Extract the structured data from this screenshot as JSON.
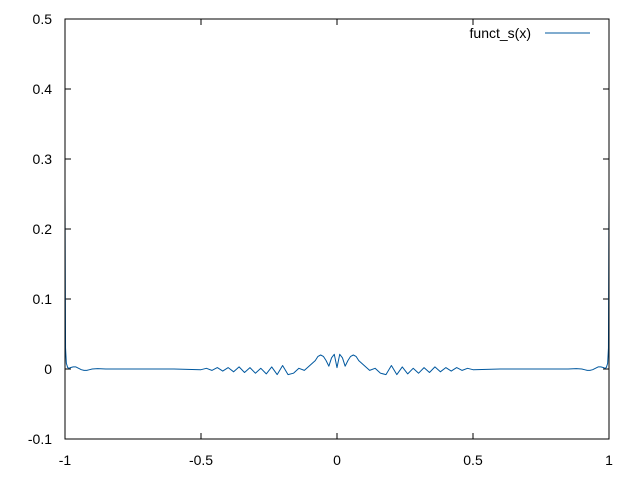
{
  "chart_data": {
    "type": "line",
    "title": "",
    "xlabel": "",
    "ylabel": "",
    "xlim": [
      -1,
      1
    ],
    "ylim": [
      -0.1,
      0.5
    ],
    "x_ticks": [
      -1,
      -0.5,
      0,
      0.5,
      1
    ],
    "x_tick_labels": [
      "-1",
      "-0.5",
      "0",
      "0.5",
      "1"
    ],
    "y_ticks": [
      -0.1,
      0,
      0.1,
      0.2,
      0.3,
      0.4,
      0.5
    ],
    "y_tick_labels": [
      "-0.1",
      "0",
      "0.1",
      "0.2",
      "0.3",
      "0.4",
      "0.5"
    ],
    "grid": false,
    "legend_position": "top-right",
    "series": [
      {
        "name": "funct_s(x)",
        "color": "#00589f",
        "x": [
          -1,
          -0.998,
          -0.995,
          -0.99,
          -0.985,
          -0.98,
          -0.97,
          -0.96,
          -0.95,
          -0.94,
          -0.93,
          -0.92,
          -0.91,
          -0.9,
          -0.88,
          -0.85,
          -0.8,
          -0.7,
          -0.6,
          -0.5,
          -0.48,
          -0.46,
          -0.44,
          -0.42,
          -0.4,
          -0.38,
          -0.36,
          -0.34,
          -0.32,
          -0.3,
          -0.28,
          -0.26,
          -0.24,
          -0.22,
          -0.2,
          -0.18,
          -0.16,
          -0.14,
          -0.12,
          -0.1,
          -0.08,
          -0.07,
          -0.06,
          -0.05,
          -0.04,
          -0.03,
          -0.02,
          -0.01,
          0,
          0.01,
          0.02,
          0.03,
          0.04,
          0.05,
          0.06,
          0.07,
          0.08,
          0.1,
          0.12,
          0.14,
          0.16,
          0.18,
          0.2,
          0.22,
          0.24,
          0.26,
          0.28,
          0.3,
          0.32,
          0.34,
          0.36,
          0.38,
          0.4,
          0.42,
          0.44,
          0.46,
          0.48,
          0.5,
          0.6,
          0.7,
          0.8,
          0.85,
          0.88,
          0.9,
          0.91,
          0.92,
          0.93,
          0.94,
          0.95,
          0.96,
          0.97,
          0.98,
          0.985,
          0.99,
          0.995,
          0.998,
          1
        ],
        "y": [
          0.25,
          0.03,
          0.008,
          0.002,
          0.001,
          0.002,
          0.003,
          0.003,
          0.001,
          -0.001,
          -0.002,
          -0.002,
          -0.001,
          0,
          0.0005,
          0,
          0,
          0,
          0,
          -0.001,
          0.001,
          -0.002,
          0.002,
          -0.003,
          0.002,
          -0.004,
          0.003,
          -0.005,
          0.002,
          -0.006,
          0.001,
          -0.007,
          0.003,
          -0.008,
          0.005,
          -0.008,
          -0.006,
          0.001,
          -0.002,
          0.005,
          0.012,
          0.018,
          0.02,
          0.018,
          0.012,
          0.004,
          0.016,
          0.021,
          0.002,
          0.021,
          0.016,
          0.004,
          0.012,
          0.018,
          0.02,
          0.018,
          0.012,
          0.005,
          -0.002,
          0.001,
          -0.006,
          -0.008,
          0.005,
          -0.008,
          0.003,
          -0.007,
          0.001,
          -0.006,
          0.002,
          -0.005,
          0.003,
          -0.004,
          0.002,
          -0.003,
          0.002,
          -0.002,
          0.001,
          -0.001,
          0,
          0,
          0,
          0,
          0.0005,
          0,
          -0.001,
          -0.002,
          -0.002,
          -0.001,
          0.001,
          0.003,
          0.003,
          0.002,
          0.001,
          0.002,
          0.008,
          0.03,
          0.25
        ]
      }
    ]
  }
}
